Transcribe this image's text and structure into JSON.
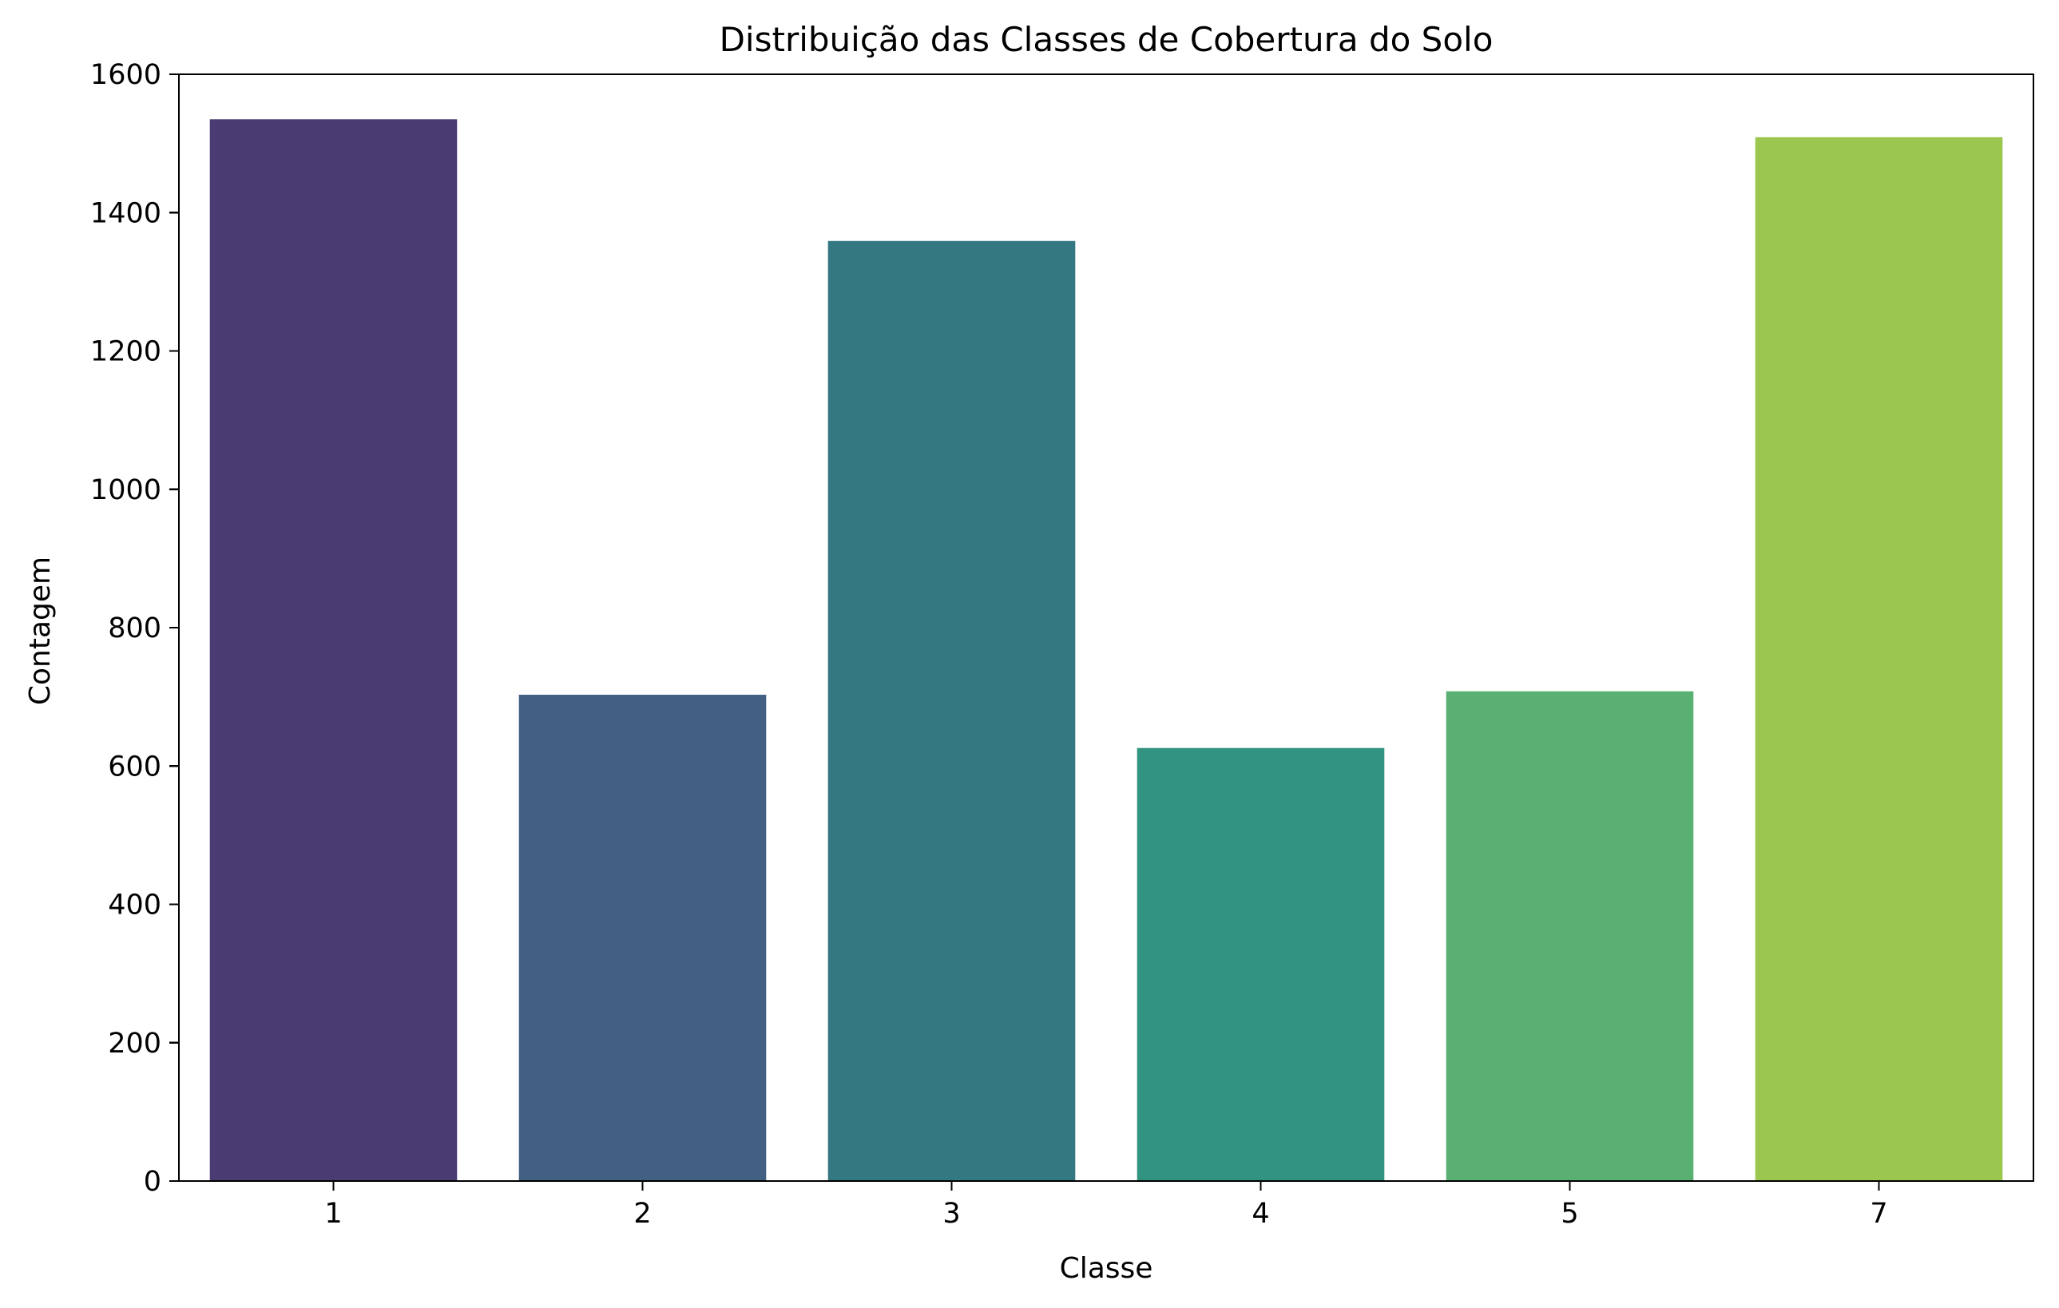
{
  "chart_data": {
    "type": "bar",
    "title": "Distribuição das Classes de Cobertura do Solo",
    "xlabel": "Classe",
    "ylabel": "Contagem",
    "categories": [
      "1",
      "2",
      "3",
      "4",
      "5",
      "7"
    ],
    "values": [
      1535,
      703,
      1359,
      626,
      708,
      1509
    ],
    "colors": [
      "#4a3b73",
      "#426082",
      "#347882",
      "#329380",
      "#5ab073",
      "#9bc74e"
    ],
    "ylim": [
      0,
      1600
    ],
    "yticks": [
      0,
      200,
      400,
      600,
      800,
      1000,
      1200,
      1400,
      1600
    ],
    "grid": false,
    "legend": "none"
  }
}
